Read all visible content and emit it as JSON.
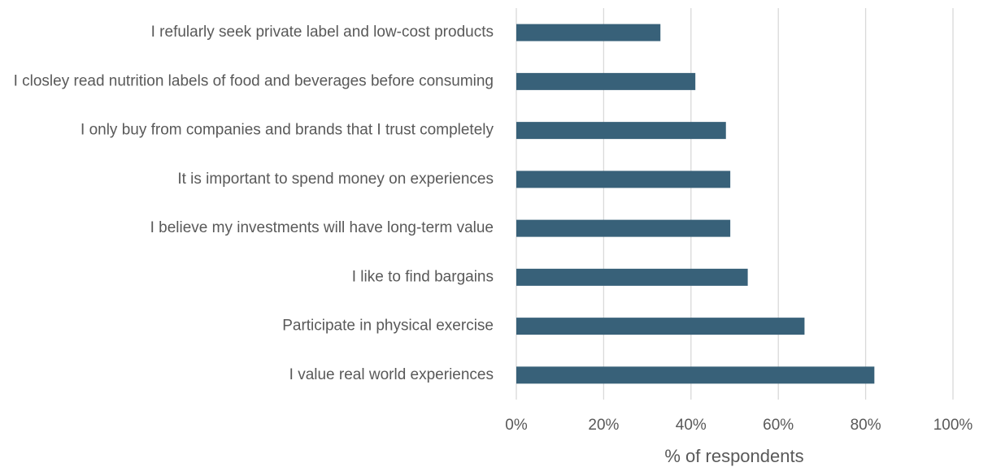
{
  "chart_data": {
    "type": "bar",
    "orientation": "horizontal",
    "xlabel": "% of respondents",
    "categories": [
      "I refularly seek private label and low-cost products",
      "I closley read nutrition labels of food and beverages before consuming",
      "I only buy from companies and brands that I trust completely",
      "It is important to spend money on experiences",
      "I believe my investments will have long-term value",
      "I like to find bargains",
      "Participate in physical exercise",
      "I value real world experiences"
    ],
    "values": [
      33,
      41,
      48,
      49,
      49,
      53,
      66,
      82
    ],
    "color": "#386179",
    "xlim": [
      0,
      100
    ],
    "xticks": [
      {
        "value": 0,
        "label": "0%"
      },
      {
        "value": 20,
        "label": "20%"
      },
      {
        "value": 40,
        "label": "40%"
      },
      {
        "value": 60,
        "label": "60%"
      },
      {
        "value": 80,
        "label": "80%"
      },
      {
        "value": 100,
        "label": "100%"
      }
    ],
    "grid": true
  }
}
